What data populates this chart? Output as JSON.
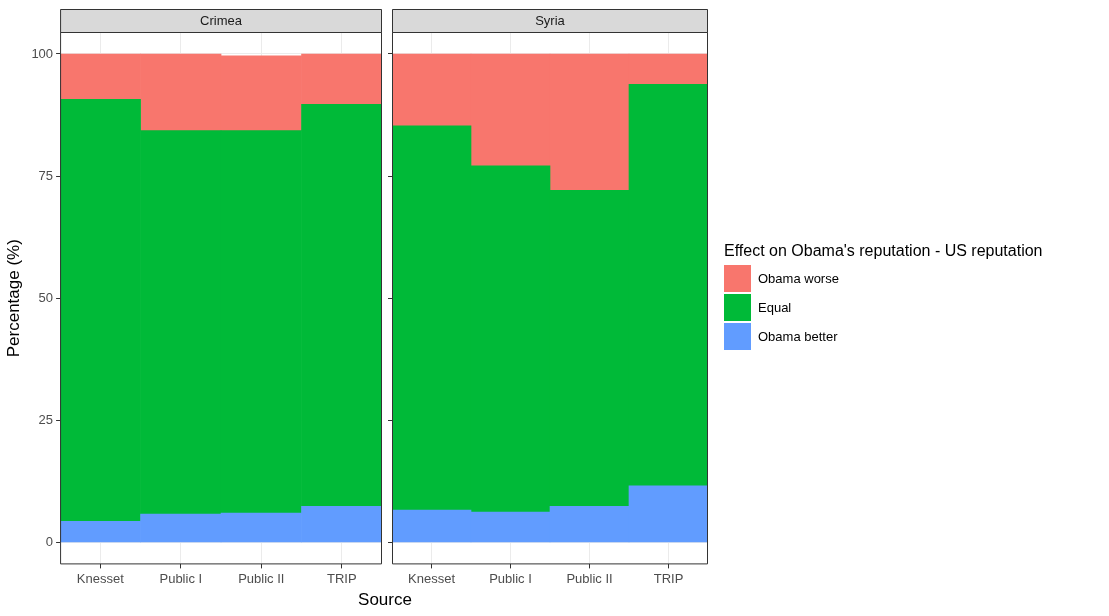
{
  "chart_data": [
    {
      "type": "bar",
      "title": "Crimea",
      "xlabel": "Source",
      "ylabel": "Percentage (%)",
      "categories": [
        "Knesset",
        "Public I",
        "Public II",
        "TRIP"
      ],
      "stacked": true,
      "ylim": [
        -4.5,
        104.5
      ],
      "yticks": [
        0,
        25,
        50,
        75,
        100
      ],
      "grid": true,
      "series": [
        {
          "color": "#619cff",
          "values": [
            4.3,
            5.8,
            6.0,
            7.4
          ]
        },
        {
          "color": "#00ba38",
          "values": [
            86.4,
            78.5,
            78.3,
            82.3
          ]
        },
        {
          "color": "#f8766d",
          "values": [
            9.3,
            15.7,
            15.3,
            10.3
          ]
        }
      ]
    },
    {
      "type": "bar",
      "title": "Syria",
      "categories": [
        "Knesset",
        "Public I",
        "Public II",
        "TRIP"
      ],
      "stacked": true,
      "ylim": [
        -4.5,
        104.5
      ],
      "yticks": [
        0,
        25,
        50,
        75,
        100
      ],
      "grid": true,
      "legend": "right",
      "legend_title": "Effect on Obama's reputation - US reputation",
      "tick_labels": "x",
      "series": [
        {
          "name": "Obama better",
          "color": "#619cff",
          "values": [
            6.6,
            6.2,
            7.4,
            11.6
          ]
        },
        {
          "name": "Equal",
          "color": "#00ba38",
          "values": [
            78.7,
            70.9,
            64.7,
            82.2
          ]
        },
        {
          "name": "Obama worse",
          "color": "#f8766d",
          "values": [
            14.7,
            22.9,
            27.9,
            6.2
          ]
        }
      ]
    }
  ]
}
